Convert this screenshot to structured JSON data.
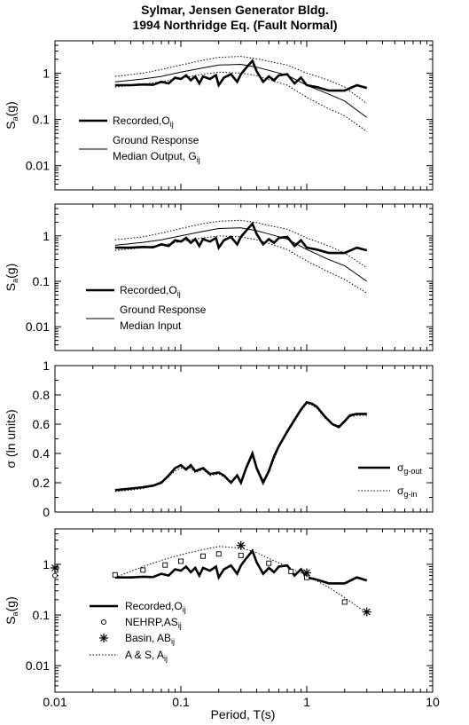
{
  "title": [
    "Sylmar, Jensen Generator Bldg.",
    "1994 Northridge Eq. (Fault Normal)"
  ],
  "xlabel": "Period, T(s)",
  "x_ticks": [
    "0.01",
    "0.1",
    "1",
    "10"
  ],
  "chart_data": [
    {
      "type": "line",
      "ylabel": "S_a(g)",
      "yscale": "log",
      "xscale": "log",
      "xlim": [
        0.01,
        10
      ],
      "ylim": [
        0.003,
        5
      ],
      "y_ticks": [
        "0.01",
        "0.1",
        "1"
      ],
      "legend": [
        {
          "label": "Recorded,O",
          "sub": "ij",
          "style": "thick"
        },
        {
          "label": "Ground Response",
          "label2": "Median Output, G",
          "sub": "ij",
          "style": "thin"
        }
      ],
      "series": [
        {
          "name": "Recorded,Oij",
          "style": "thick",
          "x": [
            0.03,
            0.04,
            0.05,
            0.06,
            0.07,
            0.08,
            0.09,
            0.1,
            0.11,
            0.12,
            0.13,
            0.14,
            0.15,
            0.17,
            0.19,
            0.2,
            0.22,
            0.25,
            0.28,
            0.3,
            0.33,
            0.37,
            0.4,
            0.45,
            0.5,
            0.55,
            0.6,
            0.7,
            0.8,
            0.9,
            1.0,
            1.2,
            1.5,
            2.0,
            2.5,
            3.0
          ],
          "y": [
            0.55,
            0.55,
            0.57,
            0.56,
            0.65,
            0.6,
            0.8,
            0.75,
            0.9,
            0.7,
            0.85,
            0.6,
            0.85,
            0.75,
            0.9,
            0.55,
            0.8,
            0.95,
            0.65,
            0.95,
            1.3,
            1.85,
            1.1,
            0.65,
            0.85,
            0.7,
            0.9,
            0.95,
            0.6,
            0.8,
            0.55,
            0.5,
            0.42,
            0.42,
            0.55,
            0.48
          ]
        },
        {
          "name": "Median Output",
          "style": "thin",
          "x": [
            0.03,
            0.05,
            0.07,
            0.1,
            0.15,
            0.2,
            0.3,
            0.4,
            0.5,
            0.7,
            1.0,
            1.5,
            2.0,
            3.0
          ],
          "y": [
            0.65,
            0.75,
            0.85,
            1.05,
            1.3,
            1.5,
            1.55,
            1.35,
            1.15,
            0.9,
            0.55,
            0.35,
            0.25,
            0.11
          ]
        },
        {
          "name": "Median Output +",
          "style": "dotted",
          "x": [
            0.03,
            0.05,
            0.07,
            0.1,
            0.15,
            0.2,
            0.3,
            0.4,
            0.5,
            0.7,
            1.0,
            1.5,
            2.0,
            3.0
          ],
          "y": [
            0.85,
            1.0,
            1.2,
            1.5,
            1.9,
            2.2,
            2.3,
            2.05,
            1.8,
            1.5,
            1.0,
            0.7,
            0.5,
            0.22
          ]
        },
        {
          "name": "Median Output -",
          "style": "dotted",
          "x": [
            0.03,
            0.05,
            0.07,
            0.1,
            0.15,
            0.2,
            0.3,
            0.4,
            0.5,
            0.7,
            1.0,
            1.5,
            2.0,
            3.0
          ],
          "y": [
            0.5,
            0.58,
            0.65,
            0.78,
            0.95,
            1.05,
            1.0,
            0.88,
            0.72,
            0.55,
            0.3,
            0.17,
            0.12,
            0.055
          ]
        }
      ]
    },
    {
      "type": "line",
      "ylabel": "S_a(g)",
      "yscale": "log",
      "xscale": "log",
      "xlim": [
        0.01,
        10
      ],
      "ylim": [
        0.003,
        5
      ],
      "y_ticks": [
        "0.01",
        "0.1",
        "1"
      ],
      "legend": [
        {
          "label": "Recorded,O",
          "sub": "ij",
          "style": "thick"
        },
        {
          "label": "Ground Response",
          "label2": "Median Input",
          "sub": "",
          "style": "thin"
        }
      ],
      "series": [
        {
          "name": "Recorded,Oij",
          "style": "thick",
          "x": [
            0.03,
            0.04,
            0.05,
            0.06,
            0.07,
            0.08,
            0.09,
            0.1,
            0.11,
            0.12,
            0.13,
            0.14,
            0.15,
            0.17,
            0.19,
            0.2,
            0.22,
            0.25,
            0.28,
            0.3,
            0.33,
            0.37,
            0.4,
            0.45,
            0.5,
            0.55,
            0.6,
            0.7,
            0.8,
            0.9,
            1.0,
            1.2,
            1.5,
            2.0,
            2.5,
            3.0
          ],
          "y": [
            0.55,
            0.55,
            0.57,
            0.56,
            0.65,
            0.6,
            0.8,
            0.75,
            0.9,
            0.7,
            0.85,
            0.6,
            0.85,
            0.75,
            0.9,
            0.55,
            0.8,
            0.95,
            0.65,
            0.95,
            1.3,
            1.85,
            1.1,
            0.65,
            0.85,
            0.7,
            0.9,
            0.95,
            0.6,
            0.8,
            0.55,
            0.5,
            0.42,
            0.42,
            0.55,
            0.48
          ]
        },
        {
          "name": "Median Input",
          "style": "thin",
          "x": [
            0.03,
            0.05,
            0.07,
            0.1,
            0.15,
            0.2,
            0.3,
            0.4,
            0.5,
            0.7,
            1.0,
            1.5,
            2.0,
            3.0
          ],
          "y": [
            0.62,
            0.72,
            0.82,
            1.0,
            1.25,
            1.45,
            1.5,
            1.3,
            1.1,
            0.85,
            0.5,
            0.3,
            0.22,
            0.1
          ]
        },
        {
          "name": "Median Input +",
          "style": "dotted",
          "x": [
            0.03,
            0.05,
            0.07,
            0.1,
            0.15,
            0.2,
            0.3,
            0.4,
            0.5,
            0.7,
            1.0,
            1.5,
            2.0,
            3.0
          ],
          "y": [
            0.82,
            0.95,
            1.15,
            1.45,
            1.85,
            2.1,
            2.2,
            1.95,
            1.7,
            1.4,
            0.9,
            0.6,
            0.42,
            0.2
          ]
        },
        {
          "name": "Median Input -",
          "style": "dotted",
          "x": [
            0.03,
            0.05,
            0.07,
            0.1,
            0.15,
            0.2,
            0.3,
            0.4,
            0.5,
            0.7,
            1.0,
            1.5,
            2.0,
            3.0
          ],
          "y": [
            0.48,
            0.55,
            0.62,
            0.75,
            0.9,
            1.0,
            0.95,
            0.82,
            0.68,
            0.5,
            0.28,
            0.16,
            0.11,
            0.055
          ]
        }
      ]
    },
    {
      "type": "line",
      "ylabel": "σ (ln units)",
      "yscale": "linear",
      "xscale": "log",
      "xlim": [
        0.01,
        10
      ],
      "ylim": [
        0,
        1
      ],
      "y_ticks": [
        "0",
        "0.2",
        "0.4",
        "0.6",
        "0.8",
        "1"
      ],
      "legend": [
        {
          "label": "σ",
          "sub": "g-out",
          "style": "thick"
        },
        {
          "label": "σ",
          "sub": "g-in",
          "style": "dotted"
        }
      ],
      "series": [
        {
          "name": "σ g-out",
          "style": "thick",
          "x": [
            0.03,
            0.04,
            0.05,
            0.06,
            0.07,
            0.08,
            0.09,
            0.1,
            0.11,
            0.12,
            0.13,
            0.15,
            0.17,
            0.2,
            0.22,
            0.25,
            0.28,
            0.3,
            0.33,
            0.37,
            0.4,
            0.45,
            0.5,
            0.55,
            0.6,
            0.7,
            0.8,
            0.9,
            1.0,
            1.1,
            1.2,
            1.4,
            1.6,
            1.8,
            2.0,
            2.2,
            2.5,
            3.0
          ],
          "y": [
            0.15,
            0.16,
            0.17,
            0.18,
            0.2,
            0.25,
            0.3,
            0.32,
            0.29,
            0.32,
            0.28,
            0.3,
            0.26,
            0.27,
            0.25,
            0.2,
            0.25,
            0.2,
            0.3,
            0.4,
            0.3,
            0.2,
            0.28,
            0.38,
            0.45,
            0.55,
            0.63,
            0.7,
            0.75,
            0.74,
            0.72,
            0.65,
            0.6,
            0.58,
            0.62,
            0.66,
            0.67,
            0.67
          ]
        },
        {
          "name": "σ g-in",
          "style": "dotted",
          "x": [
            0.03,
            0.04,
            0.05,
            0.06,
            0.07,
            0.08,
            0.09,
            0.1,
            0.11,
            0.12,
            0.13,
            0.15,
            0.17,
            0.2,
            0.22,
            0.25,
            0.28,
            0.3,
            0.33,
            0.37,
            0.4,
            0.45,
            0.5,
            0.55,
            0.6,
            0.7,
            0.8,
            0.9,
            1.0,
            1.1,
            1.2,
            1.4,
            1.6,
            1.8,
            2.0,
            2.2,
            2.5,
            3.0
          ],
          "y": [
            0.14,
            0.15,
            0.16,
            0.18,
            0.21,
            0.24,
            0.28,
            0.3,
            0.31,
            0.3,
            0.27,
            0.29,
            0.25,
            0.26,
            0.24,
            0.21,
            0.24,
            0.21,
            0.29,
            0.38,
            0.31,
            0.22,
            0.27,
            0.36,
            0.44,
            0.54,
            0.62,
            0.69,
            0.74,
            0.73,
            0.71,
            0.64,
            0.6,
            0.59,
            0.62,
            0.65,
            0.66,
            0.66
          ]
        }
      ]
    },
    {
      "type": "line",
      "ylabel": "S_a(g)",
      "yscale": "log",
      "xscale": "log",
      "xlim": [
        0.01,
        10
      ],
      "ylim": [
        0.003,
        5
      ],
      "y_ticks": [
        "0.01",
        "0.1",
        "1"
      ],
      "legend": [
        {
          "label": "Recorded,O",
          "sub": "ij",
          "style": "thick"
        },
        {
          "label": "NEHRP,AS",
          "sub": "ij",
          "style": "circle"
        },
        {
          "label": "Basin, AB",
          "sub": "ij",
          "style": "star"
        },
        {
          "label": "A & S, A",
          "sub": "ij",
          "style": "dotted"
        }
      ],
      "series": [
        {
          "name": "Recorded,Oij",
          "style": "thick",
          "x": [
            0.03,
            0.04,
            0.05,
            0.06,
            0.07,
            0.08,
            0.09,
            0.1,
            0.11,
            0.12,
            0.13,
            0.14,
            0.15,
            0.17,
            0.19,
            0.2,
            0.22,
            0.25,
            0.28,
            0.3,
            0.33,
            0.37,
            0.4,
            0.45,
            0.5,
            0.55,
            0.6,
            0.7,
            0.8,
            0.9,
            1.0,
            1.2,
            1.5,
            2.0,
            2.5,
            3.0
          ],
          "y": [
            0.55,
            0.55,
            0.57,
            0.56,
            0.65,
            0.6,
            0.8,
            0.75,
            0.9,
            0.7,
            0.85,
            0.6,
            0.85,
            0.75,
            0.9,
            0.55,
            0.8,
            0.95,
            0.65,
            0.95,
            1.3,
            1.85,
            1.1,
            0.65,
            0.85,
            0.7,
            0.9,
            0.95,
            0.6,
            0.8,
            0.55,
            0.5,
            0.42,
            0.42,
            0.55,
            0.48
          ]
        },
        {
          "name": "A & S, Aij",
          "style": "dotted",
          "x": [
            0.03,
            0.05,
            0.07,
            0.1,
            0.15,
            0.2,
            0.3,
            0.4,
            0.5,
            0.7,
            1.0,
            1.5,
            2.0,
            3.0
          ],
          "y": [
            0.55,
            0.9,
            1.2,
            1.55,
            1.95,
            2.25,
            2.1,
            1.7,
            1.3,
            0.9,
            0.6,
            0.35,
            0.22,
            0.11
          ]
        },
        {
          "name": "NEHRP,ASij",
          "style": "square",
          "x": [
            0.03,
            0.05,
            0.075,
            0.1,
            0.15,
            0.2,
            0.3,
            0.5,
            0.75,
            1.0,
            2.0
          ],
          "y": [
            0.62,
            0.77,
            0.97,
            1.15,
            1.45,
            1.6,
            1.5,
            1.05,
            0.72,
            0.55,
            0.18
          ]
        },
        {
          "name": "NEHRP,ASij open",
          "style": "circle",
          "x": [
            0.01
          ],
          "y": [
            0.6
          ]
        },
        {
          "name": "Basin, ABij",
          "style": "star",
          "x": [
            0.01,
            0.3,
            1.0,
            3.0
          ],
          "y": [
            0.85,
            2.35,
            0.68,
            0.115
          ]
        }
      ]
    }
  ]
}
